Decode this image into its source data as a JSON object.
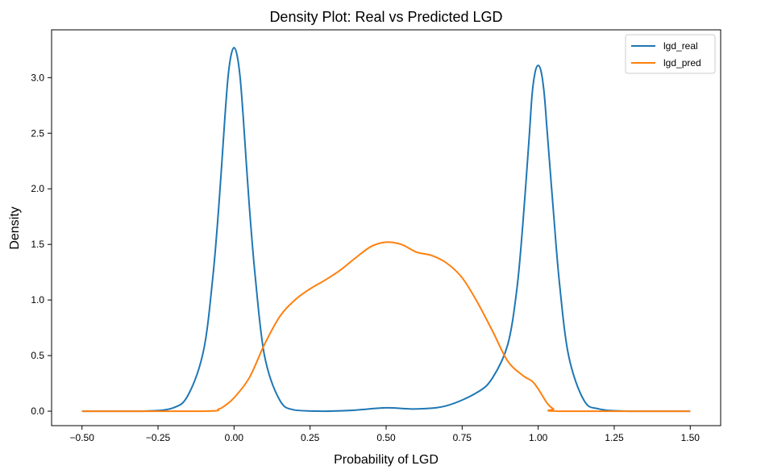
{
  "chart_data": {
    "type": "line",
    "title": "Density Plot: Real vs Predicted LGD",
    "xlabel": "Probability of LGD",
    "ylabel": "Density",
    "xlim": [
      -0.6,
      1.6
    ],
    "ylim": [
      -0.13,
      3.43
    ],
    "xticks": [
      -0.5,
      -0.25,
      0.0,
      0.25,
      0.5,
      0.75,
      1.0,
      1.25,
      1.5
    ],
    "xtick_labels": [
      "−0.50",
      "−0.25",
      "0.00",
      "0.25",
      "0.50",
      "0.75",
      "1.00",
      "1.25",
      "1.50"
    ],
    "yticks": [
      0.0,
      0.5,
      1.0,
      1.5,
      2.0,
      2.5,
      3.0
    ],
    "ytick_labels": [
      "0.0",
      "0.5",
      "1.0",
      "1.5",
      "2.0",
      "2.5",
      "3.0"
    ],
    "grid": false,
    "legend_position": "top-right",
    "series": [
      {
        "name": "lgd_real",
        "color": "#1f77b4",
        "x": [
          -0.5,
          -0.3,
          -0.2,
          -0.15,
          -0.1,
          -0.07,
          -0.05,
          -0.03,
          -0.02,
          -0.01,
          0.0,
          0.01,
          0.02,
          0.03,
          0.05,
          0.07,
          0.1,
          0.15,
          0.2,
          0.3,
          0.4,
          0.5,
          0.6,
          0.7,
          0.8,
          0.85,
          0.9,
          0.93,
          0.95,
          0.97,
          0.98,
          0.99,
          1.0,
          1.01,
          1.02,
          1.03,
          1.05,
          1.07,
          1.1,
          1.15,
          1.2,
          1.3,
          1.5
        ],
        "y": [
          0.0,
          0.0,
          0.03,
          0.15,
          0.55,
          1.2,
          1.85,
          2.65,
          3.0,
          3.2,
          3.27,
          3.2,
          3.0,
          2.65,
          1.85,
          1.2,
          0.5,
          0.1,
          0.01,
          0.0,
          0.01,
          0.03,
          0.02,
          0.05,
          0.17,
          0.3,
          0.6,
          1.1,
          1.7,
          2.45,
          2.85,
          3.05,
          3.11,
          3.05,
          2.85,
          2.5,
          1.8,
          1.15,
          0.5,
          0.1,
          0.02,
          0.0,
          0.0
        ]
      },
      {
        "name": "lgd_pred",
        "color": "#ff7f0e",
        "x": [
          -0.5,
          -0.1,
          -0.05,
          -0.03,
          0.0,
          0.05,
          0.1,
          0.15,
          0.2,
          0.25,
          0.3,
          0.35,
          0.4,
          0.45,
          0.5,
          0.55,
          0.6,
          0.65,
          0.7,
          0.75,
          0.8,
          0.85,
          0.9,
          0.95,
          0.98,
          1.0,
          1.03,
          1.05,
          1.07,
          1.5
        ],
        "y": [
          0.0,
          0.0,
          0.02,
          0.05,
          0.12,
          0.3,
          0.6,
          0.85,
          1.0,
          1.1,
          1.18,
          1.27,
          1.38,
          1.48,
          1.52,
          1.5,
          1.43,
          1.4,
          1.33,
          1.2,
          0.98,
          0.72,
          0.45,
          0.32,
          0.27,
          0.2,
          0.07,
          0.02,
          0.0,
          0.0
        ]
      }
    ]
  }
}
